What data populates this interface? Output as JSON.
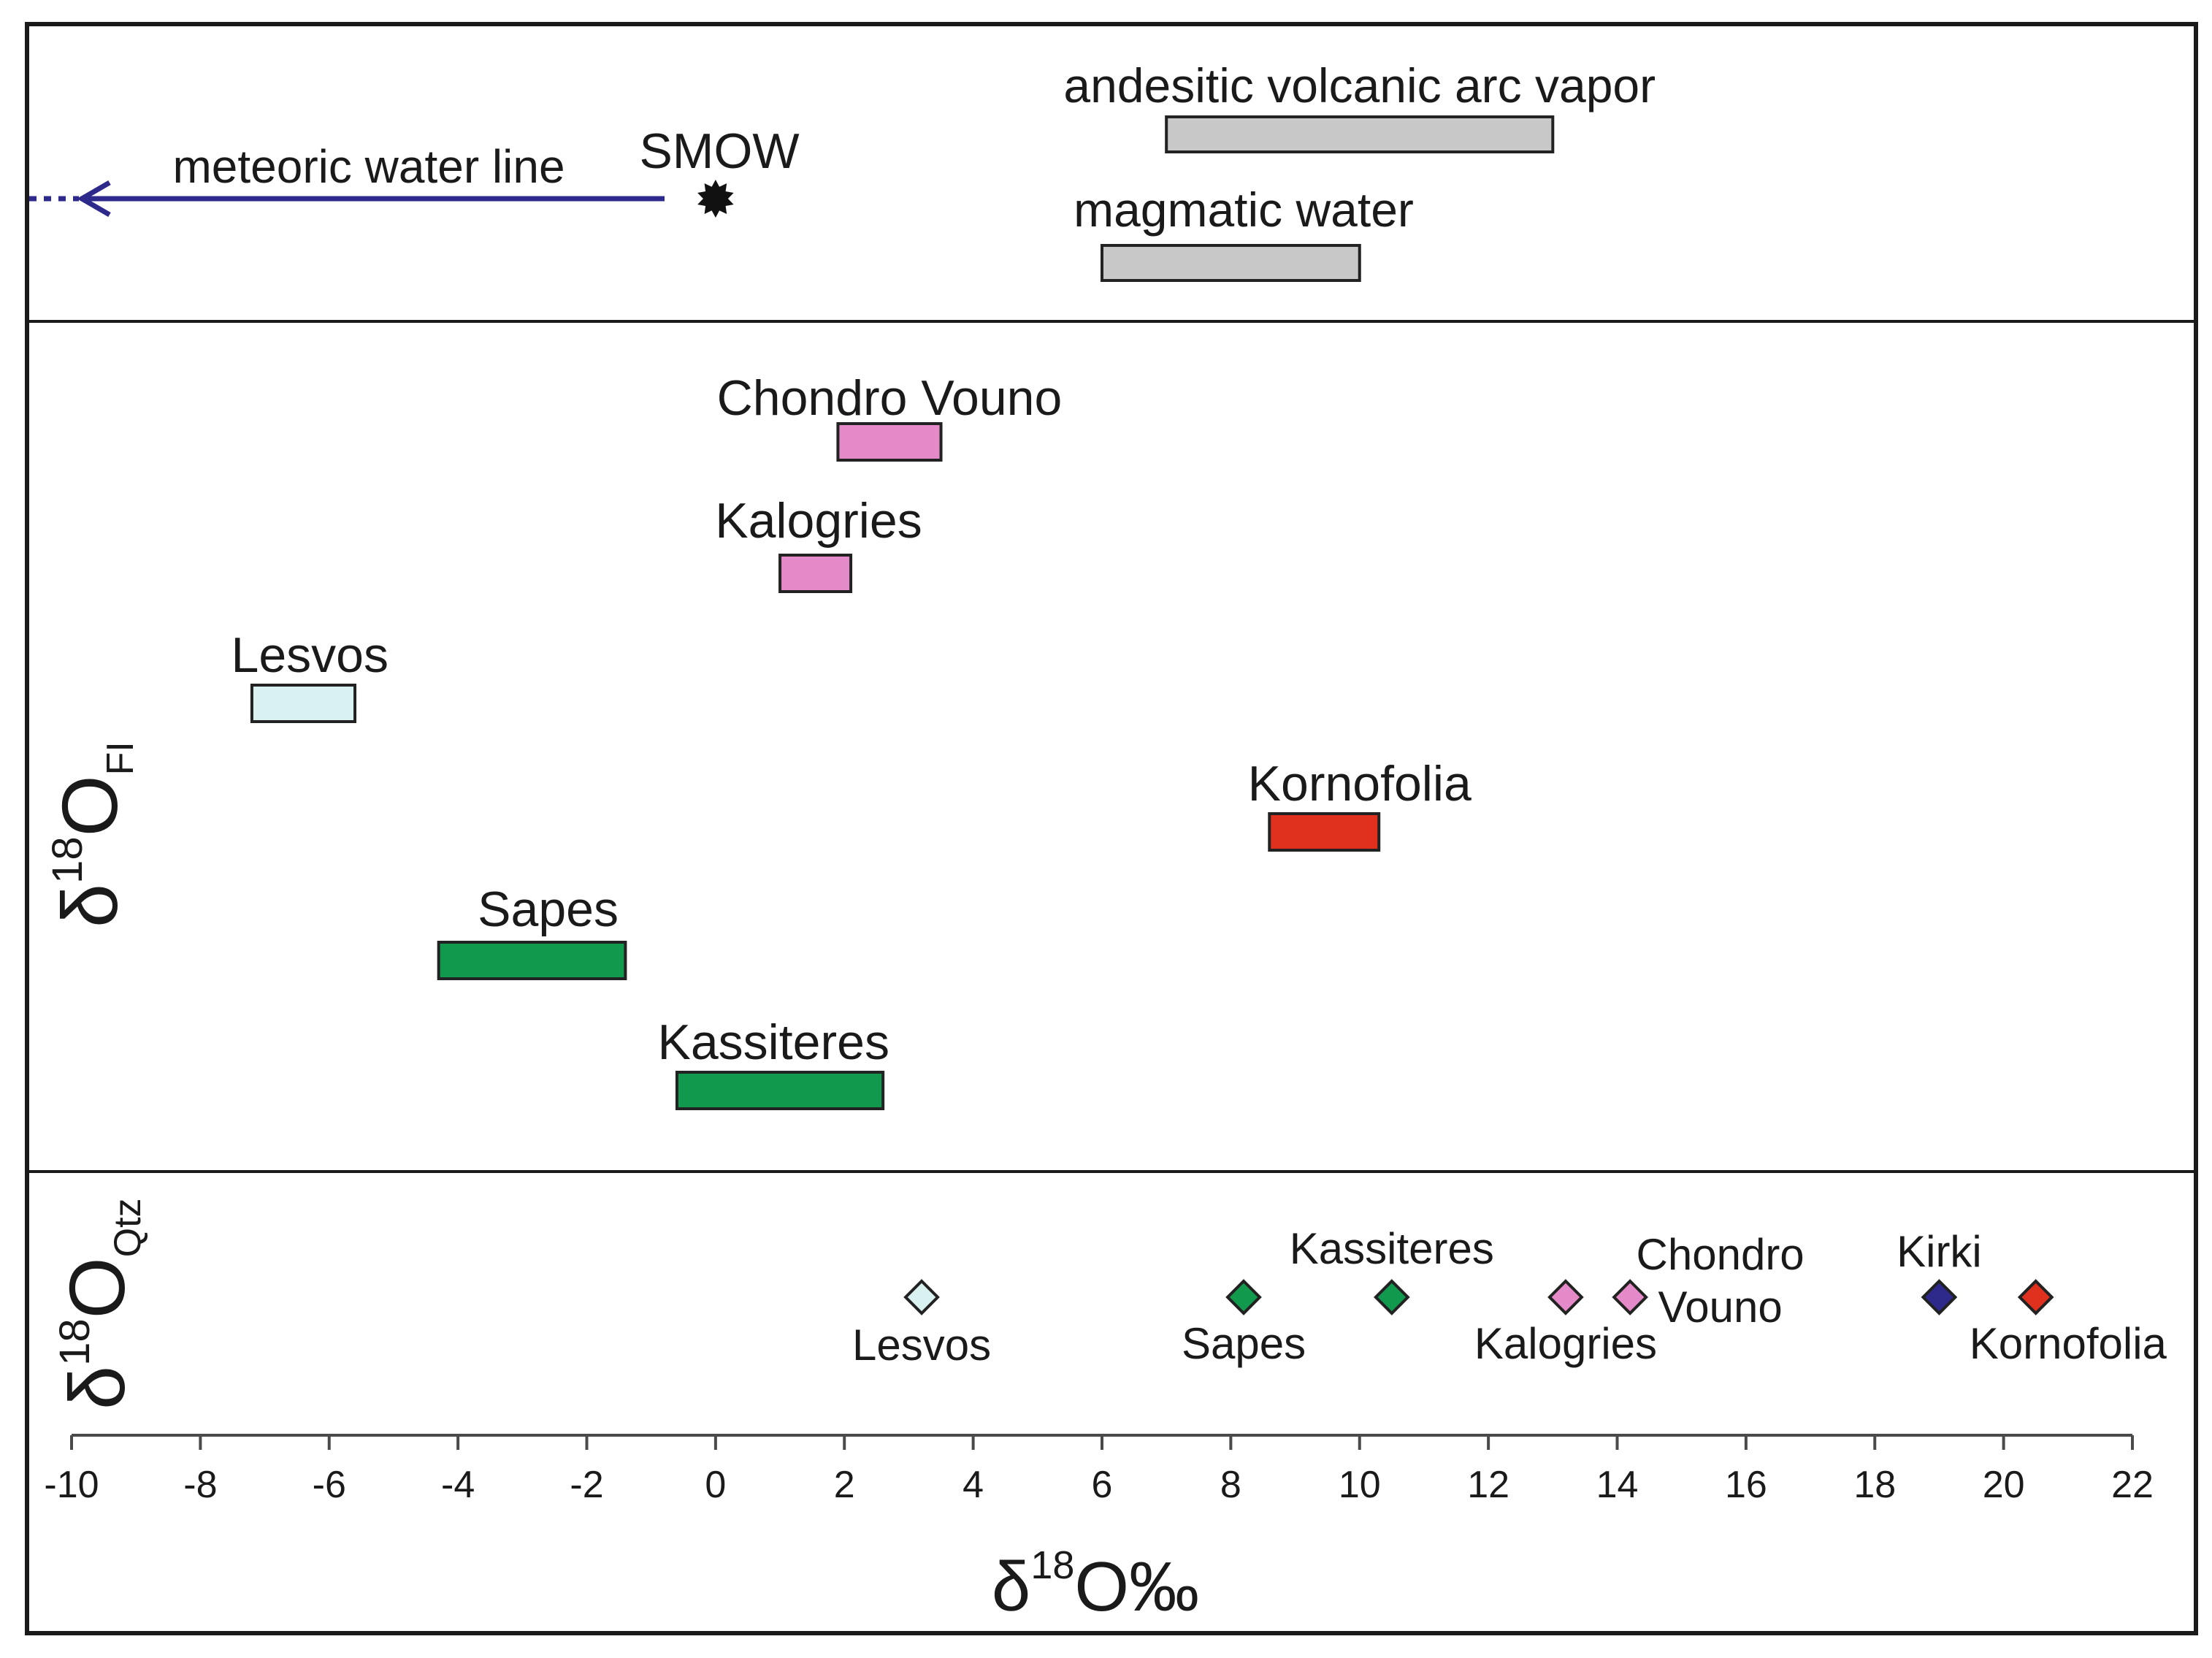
{
  "chart_data": {
    "type": "range-bar",
    "xlabel": {
      "base": "δ",
      "sup": "18",
      "main": "O‰"
    },
    "xlim": [
      -10,
      22
    ],
    "x_ticks": [
      "-10",
      "-8",
      "-6",
      "-4",
      "-2",
      "0",
      "2",
      "4",
      "6",
      "8",
      "10",
      "12",
      "14",
      "16",
      "18",
      "20",
      "22"
    ],
    "grid": false,
    "panels": {
      "reference": {
        "meteoric_label": "meteoric water line",
        "meteoric_color": "#2e2a8c",
        "smow": {
          "label": "SMOW",
          "x": 0
        },
        "ranges": [
          {
            "label": "andesitic volcanic arc vapor",
            "xmin": 7,
            "xmax": 13,
            "color": "#c8c8c8"
          },
          {
            "label": "magmatic water",
            "xmin": 6,
            "xmax": 10,
            "color": "#c8c8c8"
          }
        ]
      },
      "fluid_inclusions": {
        "ylabel": {
          "base": "δ",
          "sup": "18",
          "main": "O",
          "sub": "FI"
        },
        "ranges": [
          {
            "label": "Chondro Vouno",
            "xmin": 1.9,
            "xmax": 3.5,
            "color": "#e58ac8"
          },
          {
            "label": "Kalogries",
            "xmin": 1.0,
            "xmax": 2.1,
            "color": "#e58ac8"
          },
          {
            "label": "Lesvos",
            "xmin": -7.2,
            "xmax": -5.6,
            "color": "#d9f1f1"
          },
          {
            "label": "Kornofolia",
            "xmin": 8.6,
            "xmax": 10.3,
            "color": "#e0301e"
          },
          {
            "label": "Sapes",
            "xmin": -4.3,
            "xmax": -1.4,
            "color": "#119a4e"
          },
          {
            "label": "Kassiteres",
            "xmin": -0.6,
            "xmax": 2.6,
            "color": "#119a4e"
          }
        ]
      },
      "quartz": {
        "ylabel": {
          "base": "δ",
          "sup": "18",
          "main": "O",
          "sub": "Qtz"
        },
        "points": [
          {
            "label": "Lesvos",
            "x": 3.2,
            "color": "#d9f1f1"
          },
          {
            "label": "Sapes",
            "x": 8.2,
            "color": "#119a4e"
          },
          {
            "label": "Kassiteres",
            "x": 10.5,
            "color": "#119a4e"
          },
          {
            "label": "Kalogries",
            "x": 13.2,
            "color": "#e58ac8"
          },
          {
            "label": "Chondro Vouno",
            "x": 14.2,
            "color": "#e58ac8"
          },
          {
            "label": "Kirki",
            "x": 19.0,
            "color": "#2e2a8c"
          },
          {
            "label": "Kornofolia",
            "x": 20.5,
            "color": "#e0301e"
          }
        ]
      }
    }
  }
}
